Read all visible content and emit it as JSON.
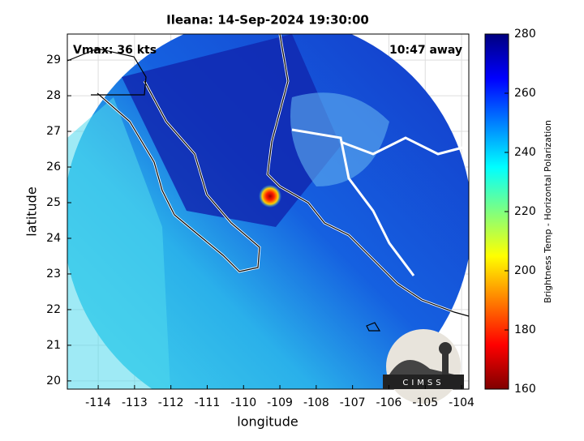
{
  "chart_data": {
    "type": "map",
    "title": "Ileana: 14-Sep-2024 19:30:00",
    "xlabel": "longitude",
    "ylabel": "latitude",
    "xlim": [
      -114.85,
      -103.8
    ],
    "ylim": [
      19.77,
      29.73
    ],
    "xticks": [
      -114,
      -113,
      -112,
      -111,
      -110,
      -109,
      -108,
      -107,
      -106,
      -105,
      -104
    ],
    "yticks": [
      20,
      21,
      22,
      23,
      24,
      25,
      26,
      27,
      28,
      29
    ],
    "grid": true,
    "annotations": [
      "Vmax: 36 kts",
      "10:47 away"
    ],
    "colorbar": {
      "label": "Brightness Temp - Horizontal Polarization",
      "lim": [
        160,
        280
      ],
      "ticks": [
        160,
        180,
        200,
        220,
        240,
        260,
        280
      ],
      "colormap": "jet"
    },
    "logo_text": "CIMSS"
  }
}
